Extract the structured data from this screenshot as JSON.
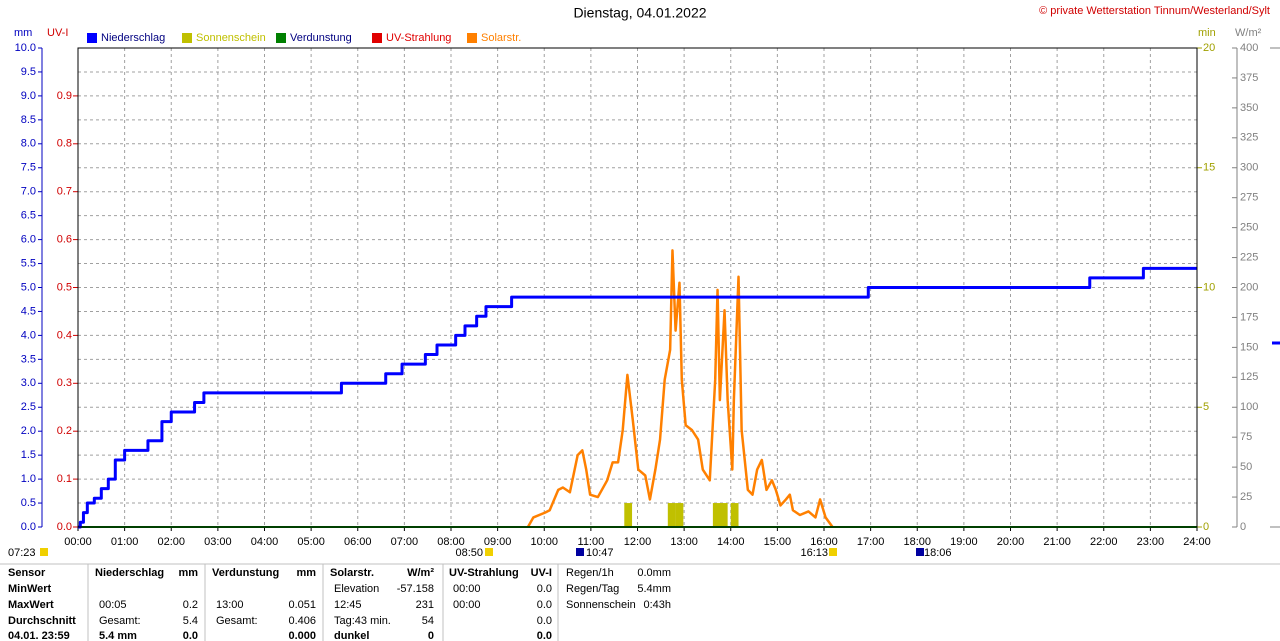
{
  "chart_data": {
    "type": "line",
    "title": "Dienstag, 04.01.2022",
    "credit": "© private Wetterstation Tinnum/Westerland/Sylt",
    "ylabel": "mm",
    "y2label": "UV-I",
    "y3label": "min",
    "y4label": "W/m²",
    "grid": true,
    "xlim": [
      "00:00",
      "24:00"
    ],
    "xticks": [
      "00:00",
      "01:00",
      "02:00",
      "03:00",
      "04:00",
      "05:00",
      "06:00",
      "07:00",
      "08:00",
      "09:00",
      "10:00",
      "11:00",
      "12:00",
      "13:00",
      "14:00",
      "15:00",
      "16:00",
      "17:00",
      "18:00",
      "19:00",
      "20:00",
      "21:00",
      "22:00",
      "23:00",
      "24:00"
    ],
    "ylim": [
      0,
      10
    ],
    "yticks": [
      {
        "value": 0,
        "label": "0.0"
      },
      0.5,
      {
        "value": 1,
        "label": "1.0"
      },
      1.5,
      {
        "value": 2,
        "label": "2.0"
      },
      2.5,
      {
        "value": 3,
        "label": "3.0"
      },
      3.5,
      {
        "value": 4,
        "label": "4.0"
      },
      4.5,
      {
        "value": 5,
        "label": "5.0"
      },
      5.5,
      {
        "value": 6,
        "label": "6.0"
      },
      6.5,
      {
        "value": 7,
        "label": "7.0"
      },
      7.5,
      {
        "value": 8,
        "label": "8.0"
      },
      8.5,
      {
        "value": 9,
        "label": "9.0"
      },
      9.5,
      {
        "value": 10,
        "label": "10.0"
      }
    ],
    "y2lim": [
      0,
      1
    ],
    "y2ticks": [
      {
        "value": 0,
        "label": "0.0"
      },
      0.1,
      0.2,
      0.3,
      0.4,
      0.5,
      0.6,
      0.7,
      0.8,
      0.9
    ],
    "y3lim": [
      0,
      20
    ],
    "y3ticks": [
      0,
      5,
      10,
      15,
      20
    ],
    "y4lim": [
      0,
      400
    ],
    "y4ticks": [
      0,
      25,
      50,
      75,
      100,
      125,
      150,
      175,
      200,
      225,
      250,
      275,
      300,
      325,
      350,
      375,
      400
    ],
    "series": [
      {
        "name": "Niederschlag",
        "color": "#0000ff",
        "axis": "y",
        "step": true,
        "x": [
          "00:00",
          "00:03",
          "00:07",
          "00:12",
          "00:21",
          "00:30",
          "00:39",
          "00:48",
          "01:00",
          "01:30",
          "01:48",
          "02:00",
          "02:30",
          "02:42",
          "05:39",
          "06:36",
          "06:57",
          "07:27",
          "07:42",
          "08:06",
          "08:18",
          "08:33",
          "08:45",
          "09:18",
          "16:57",
          "21:42",
          "22:51",
          "24:00"
        ],
        "values": [
          0,
          0.1,
          0.3,
          0.5,
          0.6,
          0.8,
          1.0,
          1.4,
          1.6,
          1.8,
          2.2,
          2.4,
          2.6,
          2.8,
          3.0,
          3.2,
          3.4,
          3.6,
          3.8,
          4.0,
          4.2,
          4.4,
          4.6,
          4.8,
          5.0,
          5.2,
          5.4,
          5.4
        ]
      },
      {
        "name": "Sonnenschein",
        "color": "#c0c000",
        "axis": "y3",
        "type": "bar",
        "x": [
          "11:43",
          "12:39",
          "12:49",
          "13:37",
          "13:46",
          "14:00"
        ],
        "values": [
          1,
          1,
          1,
          1,
          1,
          1
        ]
      },
      {
        "name": "Verdunstung",
        "color": "#008000",
        "axis": "y",
        "x": [
          "00:00",
          "24:00"
        ],
        "values": [
          0,
          0
        ]
      },
      {
        "name": "UV-Strahlung",
        "color": "#e00000",
        "axis": "y2",
        "x": [
          "00:00",
          "24:00"
        ],
        "values": [
          0,
          0
        ]
      },
      {
        "name": "Solarstr.",
        "color": "#ff8000",
        "axis": "y4",
        "x": [
          "09:39",
          "09:46",
          "10:01",
          "10:07",
          "10:18",
          "10:24",
          "10:33",
          "10:43",
          "10:49",
          "10:54",
          "10:59",
          "11:09",
          "11:21",
          "11:28",
          "11:35",
          "11:41",
          "11:47",
          "11:54",
          "12:01",
          "12:10",
          "12:16",
          "12:23",
          "12:29",
          "12:35",
          "12:42",
          "12:45",
          "12:49",
          "12:54",
          "12:57",
          "13:02",
          "13:10",
          "13:18",
          "13:24",
          "13:33",
          "13:40",
          "13:43",
          "13:46",
          "13:52",
          "13:56",
          "14:02",
          "14:04",
          "14:10",
          "14:14",
          "14:22",
          "14:28",
          "14:34",
          "14:40",
          "14:46",
          "14:53",
          "14:58",
          "15:04",
          "15:11",
          "15:16",
          "15:20",
          "15:29",
          "15:40",
          "15:49",
          "15:55",
          "16:02",
          "16:11"
        ],
        "values": [
          0,
          8,
          12,
          14,
          31,
          33,
          29,
          60,
          64,
          48,
          27,
          25,
          39,
          54,
          54,
          81,
          127,
          89,
          48,
          43,
          23,
          48,
          73,
          123,
          148,
          231,
          164,
          204,
          123,
          85,
          81,
          73,
          48,
          39,
          123,
          198,
          106,
          181,
          106,
          48,
          106,
          209,
          81,
          31,
          27,
          48,
          56,
          31,
          39,
          31,
          18,
          23,
          27,
          14,
          10,
          13,
          8,
          23,
          8,
          0
        ]
      }
    ],
    "events": [
      "07:23",
      "08:50",
      "10:47",
      "16:13",
      "18:06"
    ]
  },
  "stats": {
    "row_labels": [
      "Sensor",
      "MinWert",
      "MaxWert",
      "Durchschnitt",
      "04.01. 23:59"
    ],
    "columns": [
      {
        "title": "Niederschlag",
        "unit": "mm",
        "rows": [
          null,
          {
            "left": "00:05",
            "right": "0.2"
          },
          {
            "left": "Gesamt:",
            "right": "5.4"
          },
          {
            "left": "5.4 mm",
            "right": "0.0"
          }
        ]
      },
      {
        "title": "Verdunstung",
        "unit": "mm",
        "rows": [
          null,
          {
            "left": "13:00",
            "right": "0.051"
          },
          {
            "left": "Gesamt:",
            "right": "0.406"
          },
          {
            "right": "0.000"
          }
        ]
      },
      {
        "title": "Solarstr.",
        "unit": "W/m²",
        "rows": [
          {
            "left": "Elevation",
            "right": "-57.158"
          },
          {
            "left": "12:45",
            "right": "231"
          },
          {
            "left": "Tag:43 min.",
            "right": "54"
          },
          {
            "left": "dunkel",
            "right": "0"
          }
        ]
      },
      {
        "title": "UV-Strahlung",
        "unit": "UV-I",
        "rows": [
          {
            "left": "00:00",
            "right": "0.0"
          },
          {
            "left": "00:00",
            "right": "0.0"
          },
          {
            "right": "0.0"
          },
          {
            "right": "0.0"
          }
        ]
      }
    ],
    "summary": [
      {
        "left": "Regen/1h",
        "right": "0.0mm"
      },
      {
        "left": "Regen/Tag",
        "right": "5.4mm"
      },
      {
        "left": "Sonnenschein",
        "right": "0:43h"
      }
    ]
  }
}
